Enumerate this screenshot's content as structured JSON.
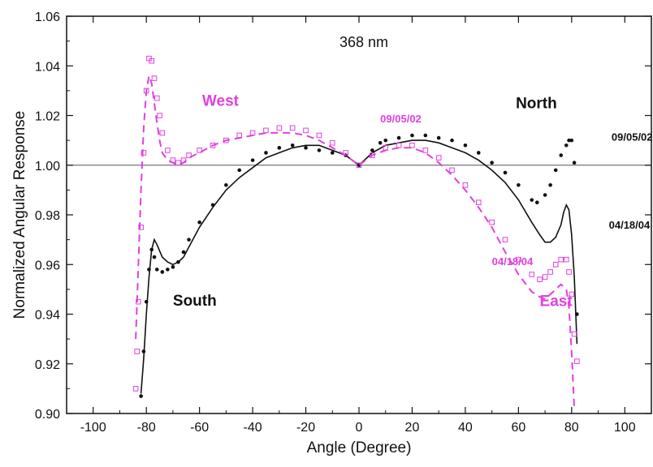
{
  "chart_data": {
    "type": "line",
    "title": "368 nm",
    "xlabel": "Angle (Degree)",
    "ylabel": "Normalized Angular Response",
    "xlim": [
      -110,
      110
    ],
    "ylim": [
      0.9,
      1.06
    ],
    "xticks": [
      -100,
      -80,
      -60,
      -40,
      -20,
      0,
      20,
      40,
      60,
      80,
      100
    ],
    "yticks": [
      0.9,
      0.92,
      0.94,
      0.96,
      0.98,
      1.0,
      1.02,
      1.04,
      1.06
    ],
    "xtick_labels": [
      "-100",
      "-80",
      "-60",
      "-40",
      "-20",
      "0",
      "20",
      "40",
      "60",
      "80",
      "100"
    ],
    "ytick_labels": [
      "0.90",
      "0.92",
      "0.94",
      "0.96",
      "0.98",
      "1.00",
      "1.02",
      "1.04",
      "1.06"
    ],
    "reference_line_y": 1.0,
    "grid": false,
    "colors": {
      "black": "#111111",
      "magenta": "#e040e0",
      "refline": "#555555"
    },
    "annotations": [
      {
        "text": "West",
        "x": -59,
        "y": 1.024,
        "color": "#e040e0",
        "size": "big"
      },
      {
        "text": "North",
        "x": 59,
        "y": 1.023,
        "color": "#111111",
        "size": "big"
      },
      {
        "text": "South",
        "x": -70,
        "y": 0.9435,
        "color": "#111111",
        "size": "big"
      },
      {
        "text": "East",
        "x": 68,
        "y": 0.9433,
        "color": "#e040e0",
        "size": "big"
      },
      {
        "text": "09/05/02",
        "x": 8,
        "y": 1.0172,
        "color": "#e040e0",
        "size": "small"
      },
      {
        "text": "09/05/02",
        "x": 95,
        "y": 1.0098,
        "color": "#111111",
        "size": "small"
      },
      {
        "text": "04/18/04",
        "x": 94,
        "y": 0.9745,
        "color": "#111111",
        "size": "small"
      },
      {
        "text": "04/18/04",
        "x": 50,
        "y": 0.9598,
        "color": "#e040e0",
        "size": "small"
      }
    ],
    "series": [
      {
        "style": "black-dots",
        "x": [
          -82,
          -81,
          -80,
          -79,
          -78,
          -77,
          -76,
          -74,
          -72,
          -70,
          -68,
          -66,
          -64,
          -60,
          -55,
          -50,
          -45,
          -40,
          -35,
          -30,
          -25,
          -20,
          -15,
          -10,
          -5,
          0,
          5,
          8,
          10,
          15,
          20,
          25,
          30,
          35,
          40,
          45,
          50,
          55,
          60,
          65,
          67,
          70,
          72,
          74,
          76,
          78,
          79,
          80,
          81,
          82
        ],
        "y": [
          0.907,
          0.925,
          0.945,
          0.958,
          0.966,
          0.963,
          0.958,
          0.957,
          0.958,
          0.959,
          0.961,
          0.965,
          0.97,
          0.977,
          0.984,
          0.992,
          0.998,
          1.002,
          1.005,
          1.007,
          1.008,
          1.007,
          1.006,
          1.005,
          1.004,
          1.0,
          1.006,
          1.009,
          1.01,
          1.011,
          1.012,
          1.012,
          1.011,
          1.01,
          1.008,
          1.005,
          1.001,
          0.997,
          0.992,
          0.986,
          0.985,
          0.988,
          0.992,
          0.998,
          1.004,
          1.008,
          1.01,
          1.01,
          1.001,
          0.94
        ]
      },
      {
        "style": "black-solid",
        "x": [
          -82,
          -81,
          -80,
          -79,
          -78,
          -77,
          -76,
          -74,
          -72,
          -70,
          -68,
          -66,
          -64,
          -60,
          -55,
          -50,
          -45,
          -40,
          -35,
          -30,
          -25,
          -20,
          -15,
          -10,
          -5,
          0,
          5,
          10,
          15,
          20,
          25,
          30,
          35,
          40,
          45,
          50,
          55,
          60,
          65,
          68,
          70,
          72,
          74,
          76,
          77,
          78,
          79,
          80,
          81,
          82
        ],
        "y": [
          0.908,
          0.922,
          0.94,
          0.955,
          0.966,
          0.97,
          0.968,
          0.963,
          0.961,
          0.96,
          0.961,
          0.963,
          0.967,
          0.975,
          0.983,
          0.99,
          0.995,
          0.999,
          1.003,
          1.005,
          1.007,
          1.008,
          1.008,
          1.006,
          1.004,
          1.0,
          1.005,
          1.008,
          1.009,
          1.01,
          1.01,
          1.009,
          1.007,
          1.005,
          1.002,
          0.998,
          0.993,
          0.986,
          0.977,
          0.972,
          0.969,
          0.969,
          0.971,
          0.976,
          0.981,
          0.984,
          0.982,
          0.972,
          0.955,
          0.928
        ]
      },
      {
        "style": "magenta-squares",
        "x": [
          -84,
          -83.5,
          -83,
          -82,
          -81,
          -80,
          -79,
          -78,
          -77,
          -76,
          -75,
          -74,
          -72,
          -70,
          -68,
          -66,
          -64,
          -60,
          -55,
          -50,
          -45,
          -40,
          -35,
          -30,
          -25,
          -20,
          -15,
          -10,
          -5,
          0,
          5,
          10,
          15,
          20,
          25,
          30,
          35,
          40,
          45,
          50,
          55,
          60,
          65,
          68,
          70,
          72,
          74,
          76,
          78,
          79,
          80,
          81,
          82
        ],
        "y": [
          0.91,
          0.925,
          0.945,
          0.975,
          1.005,
          1.03,
          1.043,
          1.042,
          1.035,
          1.027,
          1.02,
          1.013,
          1.006,
          1.002,
          1.001,
          1.002,
          1.004,
          1.006,
          1.008,
          1.01,
          1.012,
          1.013,
          1.014,
          1.015,
          1.015,
          1.014,
          1.012,
          1.009,
          1.005,
          1.0,
          1.004,
          1.007,
          1.008,
          1.008,
          1.006,
          1.003,
          0.998,
          0.992,
          0.985,
          0.977,
          0.97,
          0.962,
          0.956,
          0.954,
          0.955,
          0.957,
          0.96,
          0.962,
          0.962,
          0.957,
          0.948,
          0.932,
          0.921
        ]
      },
      {
        "style": "magenta-dashed",
        "x": [
          -84,
          -83,
          -82,
          -81,
          -80,
          -79,
          -78,
          -77,
          -76,
          -75,
          -74,
          -72,
          -70,
          -68,
          -66,
          -64,
          -60,
          -55,
          -50,
          -45,
          -40,
          -35,
          -30,
          -25,
          -20,
          -15,
          -10,
          -5,
          0,
          5,
          10,
          15,
          20,
          25,
          30,
          35,
          40,
          45,
          50,
          55,
          60,
          65,
          68,
          70,
          72,
          74,
          76,
          78,
          79,
          80,
          81
        ],
        "y": [
          0.93,
          0.96,
          0.99,
          1.015,
          1.03,
          1.036,
          1.033,
          1.025,
          1.017,
          1.01,
          1.005,
          1.002,
          1.001,
          1.0,
          1.001,
          1.003,
          1.005,
          1.008,
          1.01,
          1.011,
          1.012,
          1.013,
          1.013,
          1.013,
          1.012,
          1.01,
          1.007,
          1.004,
          1.0,
          1.004,
          1.006,
          1.007,
          1.007,
          1.005,
          1.001,
          0.996,
          0.99,
          0.983,
          0.975,
          0.965,
          0.956,
          0.949,
          0.947,
          0.946,
          0.948,
          0.95,
          0.952,
          0.95,
          0.943,
          0.925,
          0.902
        ]
      }
    ]
  }
}
